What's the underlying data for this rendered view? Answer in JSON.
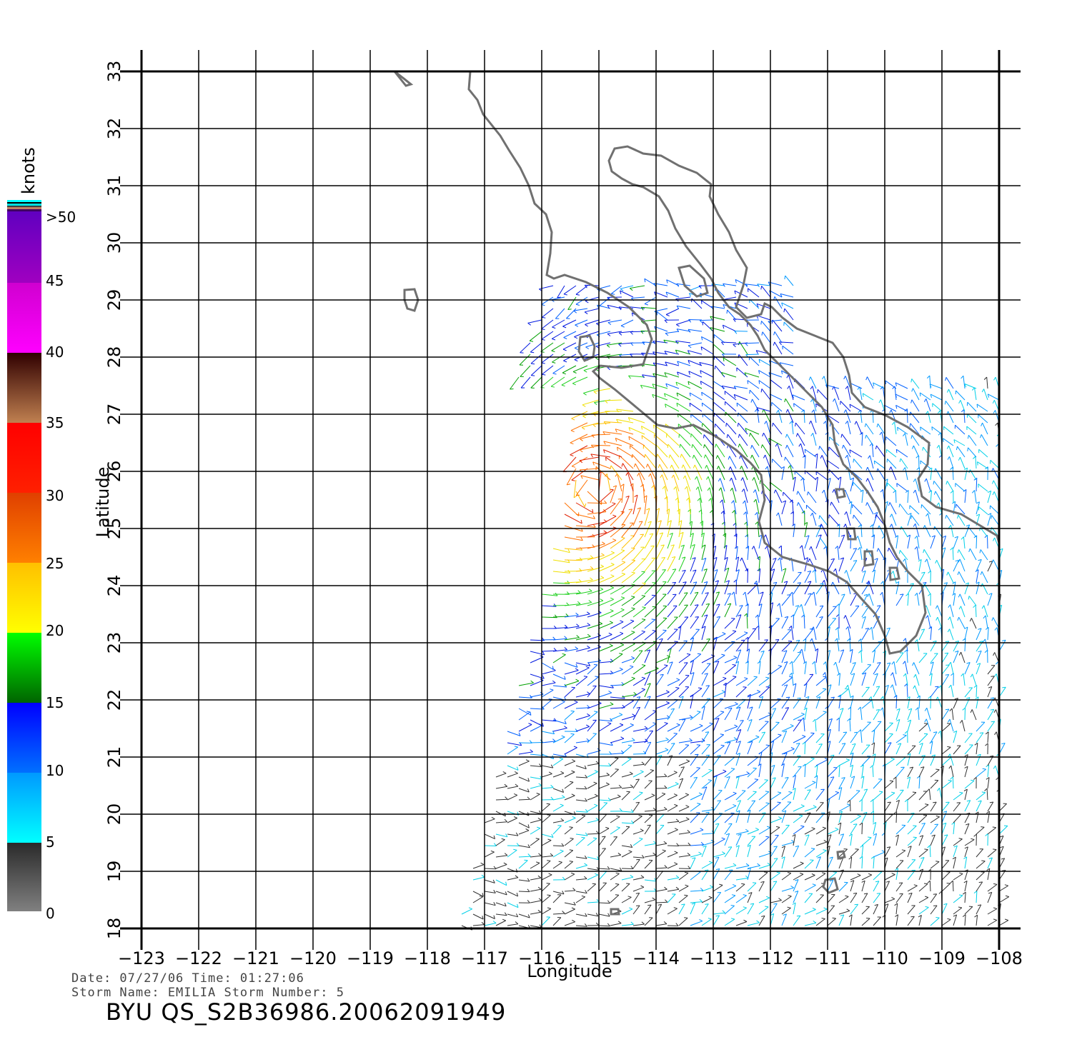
{
  "map": {
    "x_axis_label": "Longitude",
    "y_axis_label": "Latitude",
    "lon_ticks": [
      "-123",
      "-122",
      "-121",
      "-120",
      "-119",
      "-118",
      "-117",
      "-116",
      "-115",
      "-114",
      "-113",
      "-112",
      "-111",
      "-110",
      "-109",
      "-108"
    ],
    "lat_ticks": [
      "18",
      "19",
      "20",
      "21",
      "22",
      "23",
      "24",
      "25",
      "26",
      "27",
      "28",
      "29",
      "30",
      "31",
      "32",
      "33"
    ],
    "lon_range": [
      -123,
      -108
    ],
    "lat_range": [
      18,
      33
    ],
    "coastline_color": "#707070",
    "grid": true
  },
  "colorbar": {
    "unit": "knots",
    "labels": [
      "0",
      "5",
      "10",
      "15",
      "20",
      "25",
      "30",
      "35",
      "40",
      "45",
      ">50"
    ],
    "colors": {
      "0_5": [
        "#808080",
        "#2a2a2a"
      ],
      "5_10": [
        "#00ffff",
        "#0099ff"
      ],
      "10_15": [
        "#0070ff",
        "#0000ff"
      ],
      "15_20": [
        "#006400",
        "#00ff00"
      ],
      "20_25": [
        "#ffff00",
        "#ffc000"
      ],
      "25_30": [
        "#ff8000",
        "#e04000"
      ],
      "30_35": [
        "#ff2000",
        "#ff0000"
      ],
      "35_40": [
        "#c08050",
        "#300000"
      ],
      "40_45": [
        "#ff00ff",
        "#d000d0"
      ],
      "45_50": [
        "#a000c0",
        "#6000c0"
      ]
    }
  },
  "storm": {
    "center_lon": -115.1,
    "center_lat": 25.7
  },
  "footer": {
    "date_line": "Date: 07/27/06   Time: 01:27:06",
    "storm_line": "Storm  Name: EMILIA   Storm  Number: 5",
    "product_id": "BYU  QS_S2B36986.20062091949"
  }
}
